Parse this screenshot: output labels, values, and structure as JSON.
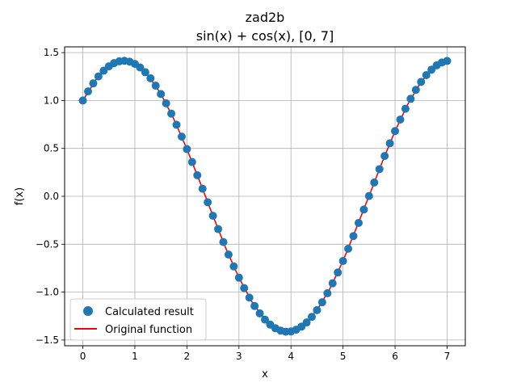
{
  "chart_data": {
    "type": "line",
    "title_line1": "zad2b",
    "title_line2": "sin(x) + cos(x), [0, 7]",
    "xlabel": "x",
    "ylabel": "f(x)",
    "xlim": [
      -0.35,
      7.35
    ],
    "ylim": [
      -1.56,
      1.56
    ],
    "x_ticks": [
      0,
      1,
      2,
      3,
      4,
      5,
      6,
      7
    ],
    "x_tick_labels": [
      "0",
      "1",
      "2",
      "3",
      "4",
      "5",
      "6",
      "7"
    ],
    "y_ticks": [
      1.5,
      1.0,
      0.5,
      0.0,
      -0.5,
      -1.0,
      -1.5
    ],
    "y_tick_labels": [
      "1.5",
      "1.0",
      "0.5",
      "0.0",
      "−0.5",
      "−1.0",
      "−1.5"
    ],
    "grid": true,
    "legend_position": "lower-left",
    "series": [
      {
        "name": "Calculated result",
        "kind": "scatter",
        "color": "#1f77b4",
        "x": [
          0.0,
          0.1,
          0.2,
          0.3,
          0.4,
          0.5,
          0.6,
          0.7,
          0.8,
          0.9,
          1.0,
          1.1,
          1.2,
          1.3,
          1.4,
          1.5,
          1.6,
          1.7,
          1.8,
          1.9,
          2.0,
          2.1,
          2.2,
          2.3,
          2.4,
          2.5,
          2.6,
          2.7,
          2.8,
          2.9,
          3.0,
          3.1,
          3.2,
          3.3,
          3.4,
          3.5,
          3.6,
          3.7,
          3.8,
          3.9,
          4.0,
          4.1,
          4.2,
          4.3,
          4.4,
          4.5,
          4.6,
          4.7,
          4.8,
          4.9,
          5.0,
          5.1,
          5.2,
          5.3,
          5.4,
          5.5,
          5.6,
          5.7,
          5.8,
          5.9,
          6.0,
          6.1,
          6.2,
          6.3,
          6.4,
          6.5,
          6.6,
          6.7,
          6.8,
          6.9,
          7.0
        ],
        "y": [
          1.0,
          1.095,
          1.179,
          1.251,
          1.311,
          1.357,
          1.39,
          1.409,
          1.414,
          1.405,
          1.382,
          1.345,
          1.295,
          1.232,
          1.155,
          1.068,
          0.971,
          0.863,
          0.747,
          0.623,
          0.493,
          0.358,
          0.22,
          0.079,
          -0.062,
          -0.203,
          -0.342,
          -0.477,
          -0.608,
          -0.732,
          -0.849,
          -0.958,
          -1.057,
          -1.145,
          -1.222,
          -1.287,
          -1.339,
          -1.377,
          -1.402,
          -1.413,
          -1.41,
          -1.392,
          -1.361,
          -1.317,
          -1.259,
          -1.188,
          -1.106,
          -1.012,
          -0.908,
          -0.795,
          -0.675,
          -0.547,
          -0.415,
          -0.278,
          -0.138,
          0.003,
          0.144,
          0.284,
          0.421,
          0.553,
          0.681,
          0.801,
          0.914,
          1.018,
          1.111,
          1.194,
          1.265,
          1.322,
          1.367,
          1.397,
          1.413
        ]
      },
      {
        "name": "Original function",
        "kind": "line",
        "color": "#ff0000",
        "x": [
          0.0,
          0.25,
          0.5,
          0.75,
          1.0,
          1.25,
          1.5,
          1.75,
          2.0,
          2.25,
          2.5,
          2.75,
          3.0,
          3.25,
          3.5,
          3.75,
          4.0,
          4.25,
          4.5,
          4.75,
          5.0,
          5.25,
          5.5,
          5.75,
          6.0,
          6.25,
          6.5,
          6.75,
          7.0
        ],
        "y": [
          1.0,
          1.216,
          1.357,
          1.413,
          1.382,
          1.264,
          1.068,
          0.806,
          0.493,
          0.15,
          -0.203,
          -0.545,
          -0.849,
          -1.102,
          -1.287,
          -1.392,
          -1.41,
          -1.339,
          -1.188,
          -0.962,
          -0.675,
          -0.34,
          0.003,
          0.352,
          0.681,
          0.966,
          1.194,
          1.345,
          1.413
        ]
      }
    ]
  }
}
